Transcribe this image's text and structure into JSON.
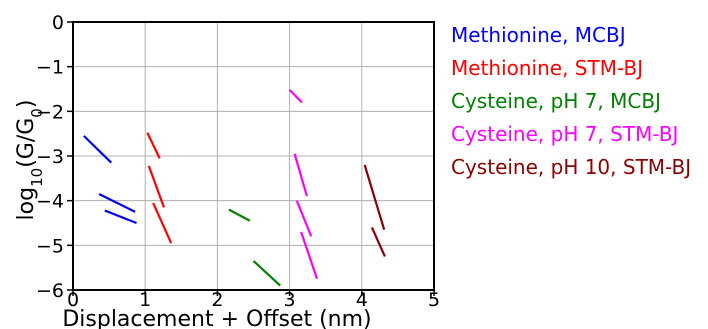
{
  "chart_data": {
    "type": "line",
    "title": "",
    "xlabel": "Displacement + Offset (nm)",
    "ylabel_parts": {
      "prefix": "log",
      "sub_10": "10",
      "open": "(G/G",
      "sub_0": "0",
      "close": ")"
    },
    "xlim": [
      0,
      5
    ],
    "ylim": [
      -6,
      0
    ],
    "x_ticks": [
      0,
      1,
      2,
      3,
      4,
      5
    ],
    "x_tick_labels": [
      "0",
      "1",
      "2",
      "3",
      "4",
      "5"
    ],
    "y_ticks": [
      0,
      -1,
      -2,
      -3,
      -4,
      -5,
      -6
    ],
    "y_tick_labels": [
      "0",
      "−1",
      "−2",
      "−3",
      "−4",
      "−5",
      "−6"
    ],
    "grid": true,
    "legend_position": "right-outside",
    "series": [
      {
        "name": "Methionine, MCBJ",
        "color": "#0000ff",
        "segments": [
          [
            [
              0.15,
              -2.55
            ],
            [
              0.53,
              -3.15
            ]
          ],
          [
            [
              0.36,
              -3.85
            ],
            [
              0.86,
              -4.25
            ]
          ],
          [
            [
              0.44,
              -4.22
            ],
            [
              0.88,
              -4.5
            ]
          ]
        ]
      },
      {
        "name": "Methionine, STM-BJ",
        "color": "#ff0000",
        "segments": [
          [
            [
              1.03,
              -2.48
            ],
            [
              1.2,
              -3.05
            ]
          ],
          [
            [
              1.05,
              -3.22
            ],
            [
              1.26,
              -4.15
            ]
          ],
          [
            [
              1.11,
              -4.05
            ],
            [
              1.36,
              -4.95
            ]
          ]
        ]
      },
      {
        "name": "Cysteine, pH 7, MCBJ",
        "color": "#008000",
        "segments": [
          [
            [
              2.16,
              -4.2
            ],
            [
              2.45,
              -4.45
            ]
          ],
          [
            [
              2.5,
              -5.35
            ],
            [
              2.87,
              -5.9
            ]
          ]
        ]
      },
      {
        "name": "Cysteine, pH 7, STM-BJ",
        "color": "#ff00ff",
        "segments": [
          [
            [
              3.0,
              -1.52
            ],
            [
              3.17,
              -1.8
            ]
          ],
          [
            [
              3.07,
              -2.95
            ],
            [
              3.24,
              -3.9
            ]
          ],
          [
            [
              3.1,
              -4.0
            ],
            [
              3.3,
              -4.8
            ]
          ],
          [
            [
              3.16,
              -4.7
            ],
            [
              3.38,
              -5.75
            ]
          ]
        ]
      },
      {
        "name": "Cysteine, pH 10, STM-BJ",
        "color": "#8b0000",
        "segments": [
          [
            [
              4.04,
              -3.2
            ],
            [
              4.31,
              -4.65
            ]
          ],
          [
            [
              4.14,
              -4.6
            ],
            [
              4.32,
              -5.25
            ]
          ]
        ]
      }
    ]
  }
}
